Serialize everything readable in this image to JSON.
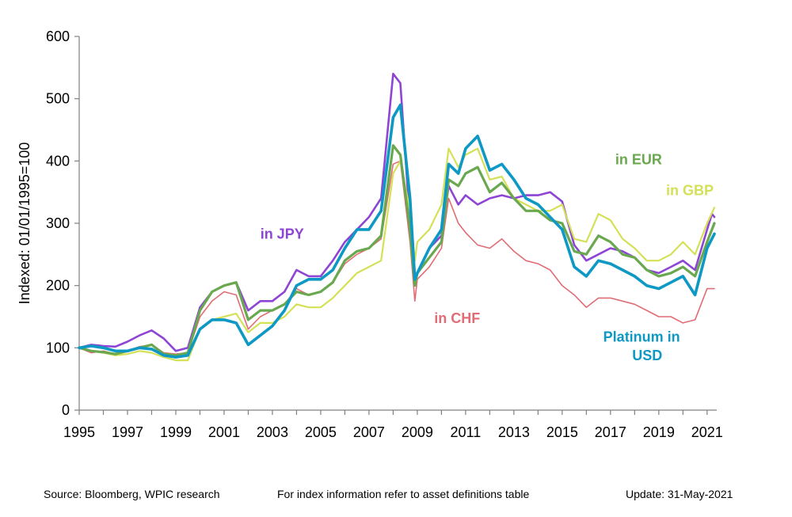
{
  "chart_data": {
    "type": "line",
    "title": "",
    "xlabel": "",
    "ylabel": "Indexed: 01/01/1995=100",
    "xlim": [
      1995,
      2021.5
    ],
    "ylim": [
      0,
      600
    ],
    "yticks": [
      0,
      100,
      200,
      300,
      400,
      500,
      600
    ],
    "ytick_labels": [
      "0",
      "100",
      "200",
      "300",
      "400",
      "500",
      "600"
    ],
    "xticks": [
      1995,
      1997,
      1999,
      2001,
      2003,
      2005,
      2007,
      2009,
      2011,
      2013,
      2015,
      2017,
      2019,
      2021
    ],
    "xtick_labels": [
      "1995",
      "1997",
      "1999",
      "2001",
      "2003",
      "2005",
      "2007",
      "2009",
      "2011",
      "2013",
      "2015",
      "2017",
      "2019",
      "2021"
    ],
    "grid": false,
    "series": [
      {
        "name": "in CHF",
        "color": "#e06c75",
        "points": [
          [
            1995,
            100
          ],
          [
            1995.5,
            92
          ],
          [
            1996,
            95
          ],
          [
            1996.5,
            90
          ],
          [
            1997,
            95
          ],
          [
            1997.5,
            102
          ],
          [
            1998,
            105
          ],
          [
            1998.5,
            92
          ],
          [
            1999,
            90
          ],
          [
            1999.5,
            92
          ],
          [
            2000,
            150
          ],
          [
            2000.5,
            175
          ],
          [
            2001,
            190
          ],
          [
            2001.5,
            185
          ],
          [
            2002,
            130
          ],
          [
            2002.5,
            150
          ],
          [
            2003,
            160
          ],
          [
            2003.5,
            170
          ],
          [
            2004,
            195
          ],
          [
            2004.5,
            185
          ],
          [
            2005,
            190
          ],
          [
            2005.5,
            205
          ],
          [
            2006,
            235
          ],
          [
            2006.5,
            250
          ],
          [
            2007,
            260
          ],
          [
            2007.5,
            275
          ],
          [
            2008,
            395
          ],
          [
            2008.3,
            400
          ],
          [
            2008.7,
            270
          ],
          [
            2008.9,
            175
          ],
          [
            2009,
            210
          ],
          [
            2009.5,
            230
          ],
          [
            2010,
            260
          ],
          [
            2010.3,
            340
          ],
          [
            2010.7,
            300
          ],
          [
            2011,
            285
          ],
          [
            2011.5,
            265
          ],
          [
            2012,
            260
          ],
          [
            2012.5,
            275
          ],
          [
            2013,
            255
          ],
          [
            2013.5,
            240
          ],
          [
            2014,
            235
          ],
          [
            2014.5,
            225
          ],
          [
            2015,
            200
          ],
          [
            2015.5,
            185
          ],
          [
            2016,
            165
          ],
          [
            2016.5,
            180
          ],
          [
            2017,
            180
          ],
          [
            2017.5,
            175
          ],
          [
            2018,
            170
          ],
          [
            2018.5,
            160
          ],
          [
            2019,
            150
          ],
          [
            2019.5,
            150
          ],
          [
            2020,
            140
          ],
          [
            2020.5,
            145
          ],
          [
            2021,
            195
          ],
          [
            2021.3,
            195
          ]
        ]
      },
      {
        "name": "in JPY",
        "color": "#8e44d4",
        "points": [
          [
            1995,
            100
          ],
          [
            1995.5,
            105
          ],
          [
            1996,
            103
          ],
          [
            1996.5,
            102
          ],
          [
            1997,
            110
          ],
          [
            1997.5,
            120
          ],
          [
            1998,
            128
          ],
          [
            1998.5,
            115
          ],
          [
            1999,
            95
          ],
          [
            1999.5,
            100
          ],
          [
            2000,
            165
          ],
          [
            2000.5,
            190
          ],
          [
            2001,
            200
          ],
          [
            2001.5,
            205
          ],
          [
            2002,
            160
          ],
          [
            2002.5,
            175
          ],
          [
            2003,
            175
          ],
          [
            2003.5,
            190
          ],
          [
            2004,
            225
          ],
          [
            2004.5,
            215
          ],
          [
            2005,
            215
          ],
          [
            2005.5,
            240
          ],
          [
            2006,
            270
          ],
          [
            2006.5,
            290
          ],
          [
            2007,
            310
          ],
          [
            2007.5,
            340
          ],
          [
            2008,
            540
          ],
          [
            2008.3,
            525
          ],
          [
            2008.7,
            300
          ],
          [
            2008.9,
            205
          ],
          [
            2009,
            220
          ],
          [
            2009.5,
            260
          ],
          [
            2010,
            280
          ],
          [
            2010.3,
            360
          ],
          [
            2010.7,
            330
          ],
          [
            2011,
            345
          ],
          [
            2011.5,
            330
          ],
          [
            2012,
            340
          ],
          [
            2012.5,
            345
          ],
          [
            2013,
            340
          ],
          [
            2013.5,
            345
          ],
          [
            2014,
            345
          ],
          [
            2014.5,
            350
          ],
          [
            2015,
            335
          ],
          [
            2015.5,
            265
          ],
          [
            2016,
            240
          ],
          [
            2016.5,
            250
          ],
          [
            2017,
            260
          ],
          [
            2017.5,
            255
          ],
          [
            2018,
            245
          ],
          [
            2018.5,
            225
          ],
          [
            2019,
            220
          ],
          [
            2019.5,
            230
          ],
          [
            2020,
            240
          ],
          [
            2020.5,
            225
          ],
          [
            2021,
            290
          ],
          [
            2021.2,
            315
          ],
          [
            2021.3,
            310
          ]
        ]
      },
      {
        "name": "in GBP",
        "color": "#d4e157",
        "points": [
          [
            1995,
            100
          ],
          [
            1995.5,
            95
          ],
          [
            1996,
            92
          ],
          [
            1996.5,
            88
          ],
          [
            1997,
            90
          ],
          [
            1997.5,
            95
          ],
          [
            1998,
            92
          ],
          [
            1998.5,
            85
          ],
          [
            1999,
            80
          ],
          [
            1999.5,
            80
          ],
          [
            2000,
            130
          ],
          [
            2000.5,
            145
          ],
          [
            2001,
            150
          ],
          [
            2001.5,
            155
          ],
          [
            2002,
            125
          ],
          [
            2002.5,
            140
          ],
          [
            2003,
            140
          ],
          [
            2003.5,
            150
          ],
          [
            2004,
            170
          ],
          [
            2004.5,
            165
          ],
          [
            2005,
            165
          ],
          [
            2005.5,
            180
          ],
          [
            2006,
            200
          ],
          [
            2006.5,
            220
          ],
          [
            2007,
            230
          ],
          [
            2007.5,
            240
          ],
          [
            2008,
            380
          ],
          [
            2008.3,
            400
          ],
          [
            2008.7,
            320
          ],
          [
            2008.9,
            240
          ],
          [
            2009,
            270
          ],
          [
            2009.5,
            290
          ],
          [
            2010,
            330
          ],
          [
            2010.3,
            420
          ],
          [
            2010.7,
            390
          ],
          [
            2011,
            410
          ],
          [
            2011.5,
            420
          ],
          [
            2012,
            370
          ],
          [
            2012.5,
            375
          ],
          [
            2013,
            340
          ],
          [
            2013.5,
            330
          ],
          [
            2014,
            320
          ],
          [
            2014.5,
            320
          ],
          [
            2015,
            330
          ],
          [
            2015.5,
            275
          ],
          [
            2016,
            270
          ],
          [
            2016.5,
            315
          ],
          [
            2017,
            305
          ],
          [
            2017.5,
            275
          ],
          [
            2018,
            260
          ],
          [
            2018.5,
            240
          ],
          [
            2019,
            240
          ],
          [
            2019.5,
            250
          ],
          [
            2020,
            270
          ],
          [
            2020.5,
            250
          ],
          [
            2021,
            300
          ],
          [
            2021.3,
            325
          ]
        ]
      },
      {
        "name": "in EUR",
        "color": "#6aa84f",
        "points": [
          [
            1995,
            100
          ],
          [
            1995.5,
            95
          ],
          [
            1996,
            93
          ],
          [
            1996.5,
            90
          ],
          [
            1997,
            95
          ],
          [
            1997.5,
            100
          ],
          [
            1998,
            105
          ],
          [
            1998.5,
            90
          ],
          [
            1999,
            88
          ],
          [
            1999.5,
            92
          ],
          [
            2000,
            160
          ],
          [
            2000.5,
            190
          ],
          [
            2001,
            200
          ],
          [
            2001.5,
            205
          ],
          [
            2002,
            145
          ],
          [
            2002.5,
            160
          ],
          [
            2003,
            160
          ],
          [
            2003.5,
            170
          ],
          [
            2004,
            190
          ],
          [
            2004.5,
            185
          ],
          [
            2005,
            190
          ],
          [
            2005.5,
            205
          ],
          [
            2006,
            240
          ],
          [
            2006.5,
            255
          ],
          [
            2007,
            260
          ],
          [
            2007.5,
            280
          ],
          [
            2008,
            425
          ],
          [
            2008.3,
            410
          ],
          [
            2008.7,
            290
          ],
          [
            2008.9,
            200
          ],
          [
            2009,
            220
          ],
          [
            2009.5,
            245
          ],
          [
            2010,
            270
          ],
          [
            2010.3,
            370
          ],
          [
            2010.7,
            360
          ],
          [
            2011,
            380
          ],
          [
            2011.5,
            390
          ],
          [
            2012,
            350
          ],
          [
            2012.5,
            365
          ],
          [
            2013,
            340
          ],
          [
            2013.5,
            320
          ],
          [
            2014,
            320
          ],
          [
            2014.5,
            305
          ],
          [
            2015,
            300
          ],
          [
            2015.5,
            255
          ],
          [
            2016,
            250
          ],
          [
            2016.5,
            280
          ],
          [
            2017,
            270
          ],
          [
            2017.5,
            250
          ],
          [
            2018,
            245
          ],
          [
            2018.5,
            225
          ],
          [
            2019,
            215
          ],
          [
            2019.5,
            220
          ],
          [
            2020,
            230
          ],
          [
            2020.5,
            215
          ],
          [
            2021,
            270
          ],
          [
            2021.3,
            300
          ]
        ]
      },
      {
        "name": "Platinum in USD",
        "color": "#0e98c4",
        "points": [
          [
            1995,
            100
          ],
          [
            1995.5,
            103
          ],
          [
            1996,
            100
          ],
          [
            1996.5,
            95
          ],
          [
            1997,
            95
          ],
          [
            1997.5,
            100
          ],
          [
            1998,
            98
          ],
          [
            1998.5,
            88
          ],
          [
            1999,
            85
          ],
          [
            1999.5,
            88
          ],
          [
            2000,
            130
          ],
          [
            2000.5,
            145
          ],
          [
            2001,
            145
          ],
          [
            2001.5,
            140
          ],
          [
            2002,
            105
          ],
          [
            2002.5,
            120
          ],
          [
            2003,
            135
          ],
          [
            2003.5,
            160
          ],
          [
            2004,
            200
          ],
          [
            2004.5,
            210
          ],
          [
            2005,
            210
          ],
          [
            2005.5,
            225
          ],
          [
            2006,
            260
          ],
          [
            2006.5,
            290
          ],
          [
            2007,
            290
          ],
          [
            2007.5,
            320
          ],
          [
            2008,
            470
          ],
          [
            2008.3,
            490
          ],
          [
            2008.7,
            340
          ],
          [
            2008.9,
            210
          ],
          [
            2009,
            220
          ],
          [
            2009.5,
            260
          ],
          [
            2010,
            290
          ],
          [
            2010.3,
            395
          ],
          [
            2010.7,
            380
          ],
          [
            2011,
            420
          ],
          [
            2011.5,
            440
          ],
          [
            2012,
            385
          ],
          [
            2012.5,
            395
          ],
          [
            2013,
            370
          ],
          [
            2013.5,
            340
          ],
          [
            2014,
            330
          ],
          [
            2014.5,
            310
          ],
          [
            2015,
            290
          ],
          [
            2015.5,
            230
          ],
          [
            2016,
            215
          ],
          [
            2016.5,
            240
          ],
          [
            2017,
            235
          ],
          [
            2017.5,
            225
          ],
          [
            2018,
            215
          ],
          [
            2018.5,
            200
          ],
          [
            2019,
            195
          ],
          [
            2019.5,
            205
          ],
          [
            2020,
            215
          ],
          [
            2020.5,
            185
          ],
          [
            2021,
            260
          ],
          [
            2021.3,
            283
          ]
        ]
      }
    ],
    "annotations": [
      {
        "text": "in JPY",
        "x": 2002.5,
        "y": 275,
        "series": "in JPY"
      },
      {
        "text": "in CHF",
        "x": 2009.7,
        "y": 140,
        "series": "in CHF"
      },
      {
        "text": "in EUR",
        "x": 2017.2,
        "y": 395,
        "series": "in EUR"
      },
      {
        "text": "in GBP",
        "x": 2019.3,
        "y": 345,
        "series": "in GBP"
      },
      {
        "text": "Platinum  in",
        "x": 2016.7,
        "y": 110,
        "series": "Platinum in USD"
      },
      {
        "text": "USD",
        "x": 2017.9,
        "y": 80,
        "series": "Platinum in USD"
      }
    ]
  },
  "footer": {
    "source": "Source: Bloomberg, WPIC research",
    "note": "For index information refer to asset definitions table",
    "update": "Update: 31-May-2021"
  }
}
